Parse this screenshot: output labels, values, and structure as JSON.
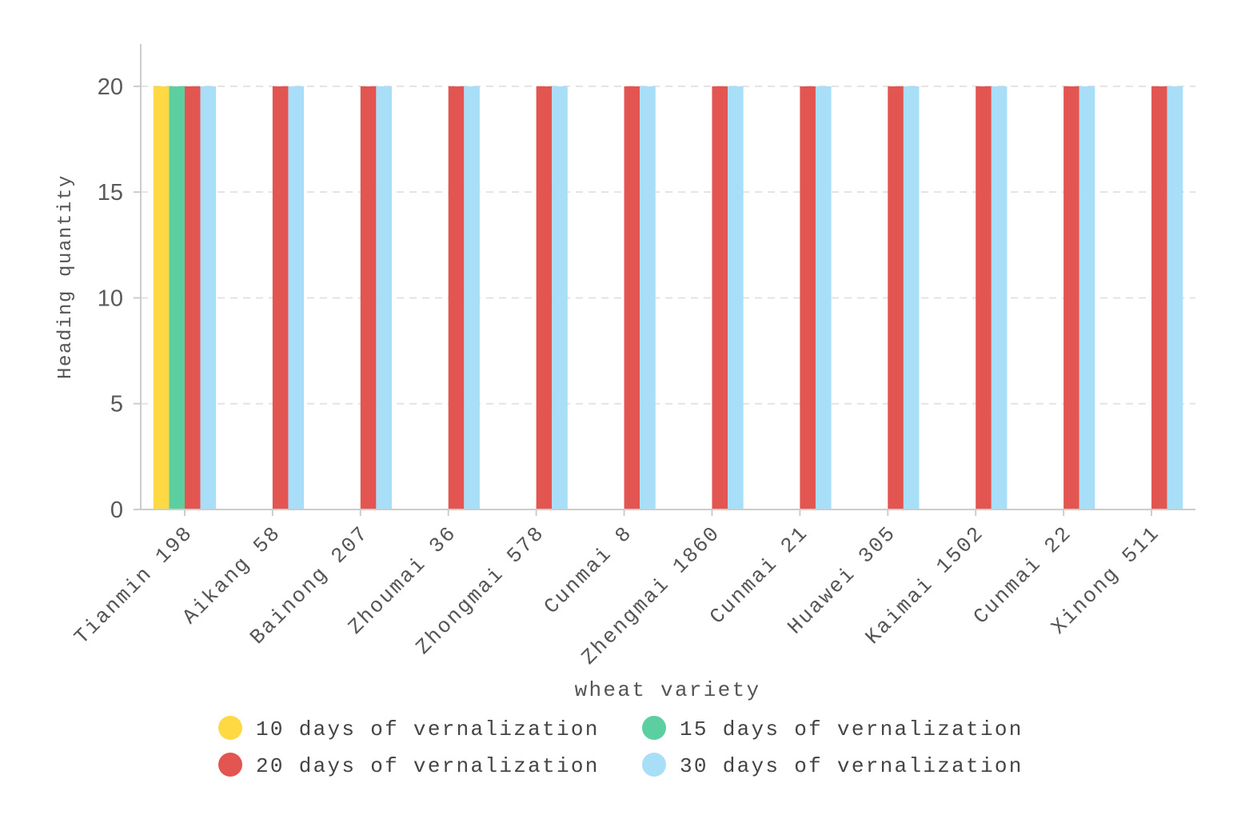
{
  "chart_data": {
    "type": "bar",
    "xlabel": "wheat variety",
    "ylabel": "Heading quantity",
    "categories": [
      "Tianmin 198",
      "Aikang 58",
      "Bainong 207",
      "Zhoumai 36",
      "Zhongmai 578",
      "Cunmai 8",
      "Zhengmai 1860",
      "Cunmai 21",
      "Huawei 305",
      "Kaimai 1502",
      "Cunmai 22",
      "Xinong 511"
    ],
    "series": [
      {
        "name": "10 days of vernalization",
        "color": "#FFD944",
        "values": [
          20,
          0,
          0,
          0,
          0,
          0,
          0,
          0,
          0,
          0,
          0,
          0
        ]
      },
      {
        "name": "15 days of vernalization",
        "color": "#5BCF9F",
        "values": [
          20,
          0,
          0,
          0,
          0,
          0,
          0,
          0,
          0,
          0,
          0,
          0
        ]
      },
      {
        "name": "20 days of vernalization",
        "color": "#E35550",
        "values": [
          20,
          20,
          20,
          20,
          20,
          20,
          20,
          20,
          20,
          20,
          20,
          20
        ]
      },
      {
        "name": "30 days of vernalization",
        "color": "#A8DEF8",
        "values": [
          20,
          20,
          20,
          20,
          20,
          20,
          20,
          20,
          20,
          20,
          20,
          20
        ]
      }
    ],
    "ylim": [
      0,
      22
    ],
    "yticks": [
      0,
      5,
      10,
      15,
      20
    ],
    "grid": true,
    "legend_position": "bottom"
  }
}
